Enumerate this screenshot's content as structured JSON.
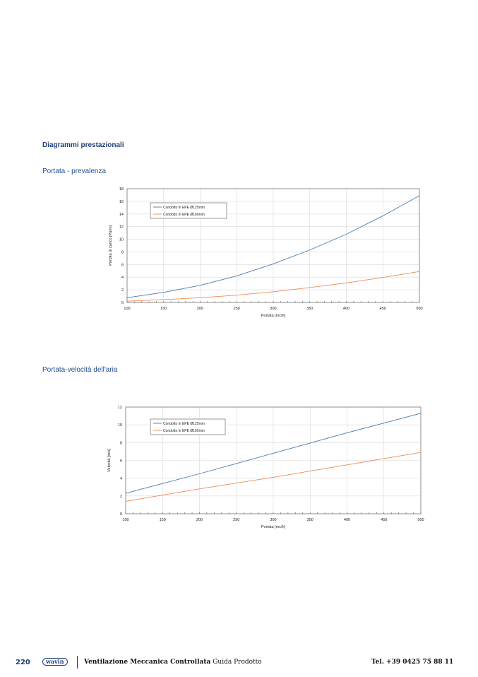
{
  "section_title": "Diagrammi prestazionali",
  "charts_titles": [
    "Portata - prevalenza",
    "Portata-velocità dell'aria"
  ],
  "colors": {
    "series_125": "#4a7bab",
    "series_160": "#ed8a52",
    "heading": "#1f3f78"
  },
  "chart_data": [
    {
      "type": "line",
      "title": "",
      "xlabel": "Portata [mc/h]",
      "ylabel": "Perdita di carico [Pa/m]",
      "xlim": [
        100,
        500
      ],
      "ylim": [
        0,
        18
      ],
      "xticks": [
        100,
        150,
        200,
        250,
        300,
        350,
        400,
        450,
        500
      ],
      "yticks": [
        0,
        2,
        4,
        6,
        8,
        10,
        12,
        14,
        16,
        18
      ],
      "grid": true,
      "legend": "top-left",
      "x": [
        100,
        150,
        200,
        250,
        300,
        350,
        400,
        450,
        500
      ],
      "series": [
        {
          "name": "Condotto in EPE Ø125mm",
          "values": [
            0.75,
            1.6,
            2.7,
            4.2,
            6.1,
            8.3,
            10.8,
            13.7,
            16.9
          ]
        },
        {
          "name": "Condotto in EPE Ø160mm",
          "values": [
            0.2,
            0.45,
            0.75,
            1.15,
            1.7,
            2.35,
            3.1,
            3.95,
            4.9
          ]
        }
      ]
    },
    {
      "type": "line",
      "title": "",
      "xlabel": "Portata [mc/h]",
      "ylabel": "Velocità [m/s]",
      "xlim": [
        100,
        500
      ],
      "ylim": [
        0,
        12
      ],
      "xticks": [
        100,
        150,
        200,
        250,
        300,
        350,
        400,
        450,
        500
      ],
      "yticks": [
        0,
        2,
        4,
        6,
        8,
        10,
        12
      ],
      "grid": true,
      "legend": "top-left",
      "x": [
        100,
        150,
        200,
        250,
        300,
        350,
        400,
        450,
        500
      ],
      "series": [
        {
          "name": "Condotto in EPE Ø125mm",
          "values": [
            2.3,
            3.4,
            4.5,
            5.65,
            6.8,
            7.95,
            9.1,
            10.2,
            11.3
          ]
        },
        {
          "name": "Condotto in EPE Ø160mm",
          "values": [
            1.4,
            2.1,
            2.8,
            3.45,
            4.1,
            4.8,
            5.5,
            6.2,
            6.9
          ]
        }
      ]
    }
  ],
  "footer": {
    "page": "220",
    "logo": "wavin",
    "title": "Ventilazione Meccanica Controllata",
    "subtitle": "Guida Prodotto",
    "phone": "Tel. +39 0425 75 88 11"
  }
}
